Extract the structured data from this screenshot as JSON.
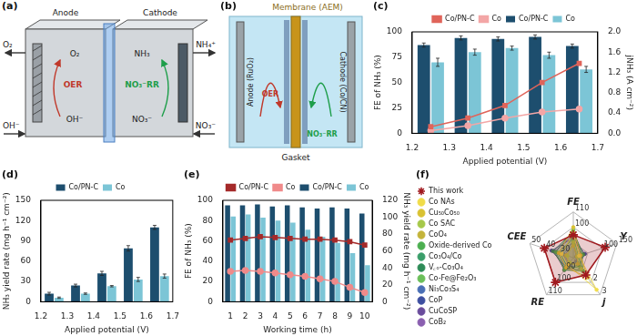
{
  "diagrams": {
    "a": {
      "label": "(a)",
      "anode": "Anode",
      "cathode": "Cathode",
      "anode_in": "OH⁻",
      "anode_out": "O₂",
      "cathode_in": "NO₃⁻",
      "cathode_out": "NH₄⁺",
      "anode_reaction": {
        "name": "OER",
        "reactant": "OH⁻",
        "product": "O₂"
      },
      "cathode_reaction": {
        "name": "NO₃⁻RR",
        "reactant": "NO₃⁻",
        "product": "NH₃"
      }
    },
    "b": {
      "label": "(b)",
      "membrane": "Membrane (AEM)",
      "anode": "Anode (RuO₂)",
      "cathode": "Cathode (Co/CN)",
      "anode_reaction": "OER",
      "cathode_reaction": "NO₃⁻RR",
      "gasket": "Gasket"
    }
  },
  "chart_data": [
    {
      "title": "(c)",
      "type": "bar",
      "x_label": "Applied potential (V)",
      "y_label": "FE of NH₃ (%)",
      "y2_label": "jNH₃ (A cm⁻²)",
      "x": [
        1.25,
        1.35,
        1.45,
        1.55,
        1.65
      ],
      "xlim": [
        1.2,
        1.7
      ],
      "xticks": [
        1.2,
        1.3,
        1.4,
        1.5,
        1.6,
        1.7
      ],
      "ylim": [
        0,
        100
      ],
      "yticks": [
        0,
        25,
        50,
        75,
        100
      ],
      "y2lim": [
        0,
        2
      ],
      "y2ticks": [
        {
          "value": 0,
          "label": "0.0"
        },
        0.4,
        0.8,
        1.2,
        1.6,
        {
          "value": 2,
          "label": "2.0"
        }
      ],
      "grid": false,
      "legend": "top",
      "series": [
        {
          "name": "Co/PN-C",
          "type": "bar",
          "color": "#1d4e6e",
          "values": [
            87,
            94,
            93,
            95,
            86
          ],
          "errors": [
            2,
            2,
            2,
            2,
            2
          ]
        },
        {
          "name": "Co",
          "type": "bar",
          "color": "#7cc5d6",
          "values": [
            70,
            80,
            84,
            77,
            63
          ],
          "errors": [
            4,
            3,
            2,
            3,
            3
          ]
        },
        {
          "name": "Co/PN-C",
          "type": "line",
          "axis": "y2",
          "color": "#e0645a",
          "marker": "square",
          "values": [
            0.13,
            0.3,
            0.55,
            1.0,
            1.38
          ]
        },
        {
          "name": "Co",
          "type": "line",
          "axis": "y2",
          "color": "#f3a6a6",
          "marker": "circle",
          "values": [
            0.05,
            0.15,
            0.3,
            0.42,
            0.48
          ]
        }
      ]
    },
    {
      "title": "(d)",
      "type": "bar",
      "x_label": "Applied potential (V)",
      "y_label": "NH₃ yield rate (mg h⁻¹ cm⁻²)",
      "x": [
        1.25,
        1.35,
        1.45,
        1.55,
        1.65
      ],
      "xlim": [
        1.2,
        1.7
      ],
      "xticks": [
        1.2,
        1.3,
        1.4,
        1.5,
        1.6,
        1.7
      ],
      "ylim": [
        0,
        150
      ],
      "yticks": [
        0,
        30,
        60,
        90,
        120,
        150
      ],
      "grid": false,
      "legend": "top",
      "series": [
        {
          "name": "Co/PN-C",
          "color": "#1d4e6e",
          "values": [
            12,
            24,
            42,
            79,
            110
          ],
          "errors": [
            2,
            2,
            3,
            4,
            3
          ]
        },
        {
          "name": "Co",
          "color": "#7cc5d6",
          "values": [
            6,
            12,
            23,
            33,
            38
          ],
          "errors": [
            1,
            1,
            1,
            3,
            3
          ]
        }
      ]
    },
    {
      "title": "(e)",
      "type": "bar",
      "x_label": "Working time (h)",
      "y_label": "FE of NH₃ (%)",
      "y2_label": "NH₃ yield rate (mg h⁻¹ cm⁻²)",
      "categories": [
        "1",
        "2",
        "3",
        "4",
        "5",
        "6",
        "7",
        "8",
        "9",
        "10"
      ],
      "ylim": [
        0,
        100
      ],
      "yticks": [
        0,
        20,
        40,
        60,
        80,
        100
      ],
      "y2lim": [
        0,
        120
      ],
      "y2ticks": [
        0,
        20,
        40,
        60,
        80,
        100,
        120
      ],
      "grid": false,
      "legend": "top",
      "series": [
        {
          "name": "Co/PN-C",
          "type": "bar",
          "color": "#1d4e6e",
          "values": [
            95,
            95,
            96,
            94,
            95,
            93,
            92,
            93,
            92,
            87
          ]
        },
        {
          "name": "Co",
          "type": "bar",
          "color": "#7cc5d6",
          "values": [
            84,
            86,
            83,
            80,
            78,
            71,
            64,
            58,
            48,
            36
          ]
        },
        {
          "name": "Co/PN-C",
          "type": "line",
          "axis": "y2",
          "color": "#a52a2a",
          "marker": "square",
          "values": [
            73,
            75,
            77,
            76,
            75,
            74,
            74,
            73,
            71,
            67
          ]
        },
        {
          "name": "Co",
          "type": "line",
          "axis": "y2",
          "color": "#f08a8a",
          "marker": "circle",
          "values": [
            36,
            37,
            36,
            34,
            32,
            30,
            27,
            24,
            17,
            11
          ]
        }
      ]
    },
    {
      "title": "(f)",
      "type": "radar",
      "legend": "left",
      "axes": [
        {
          "label": "FE",
          "lim": [
            80,
            110
          ],
          "ticks": [
            100,
            110
          ]
        },
        {
          "label": "Y",
          "lim": [
            0,
            150
          ],
          "ticks": [
            100,
            150
          ]
        },
        {
          "label": "j",
          "lim": [
            0,
            3
          ],
          "ticks": [
            2,
            3
          ]
        },
        {
          "label": "RE",
          "lim": [
            80,
            110
          ],
          "ticks": [
            90,
            100,
            110
          ]
        },
        {
          "label": "CEE",
          "lim": [
            20,
            50
          ],
          "ticks": [
            30,
            40,
            50
          ]
        }
      ],
      "series": [
        {
          "name": "Co NAs",
          "color": "#f0dc4a",
          "marker": "circle",
          "values": [
            96,
            20,
            2.6,
            86,
            28
          ]
        },
        {
          "name": "Cu₅₀Co₅₀",
          "color": "#d9c232",
          "marker": "circle",
          "values": [
            100,
            25,
            1.6,
            88,
            30
          ]
        },
        {
          "name": "Co SAC",
          "color": "#a6c84a",
          "marker": "circle",
          "values": [
            90,
            15,
            0.9,
            84,
            24
          ]
        },
        {
          "name": "CoO₄",
          "color": "#c4b43a",
          "marker": "circle",
          "values": [
            88,
            12,
            0.5,
            85,
            25
          ]
        },
        {
          "name": "Oxide-derived Co",
          "color": "#4caf50",
          "marker": "circle",
          "values": [
            98,
            30,
            1.1,
            90,
            32
          ]
        },
        {
          "name": "Co₃O₄/Co",
          "color": "#3a9e6a",
          "marker": "circle",
          "values": [
            94,
            18,
            0.8,
            87,
            29
          ]
        },
        {
          "name": "V꜀ₒ-Co₃O₄",
          "color": "#2e8b57",
          "marker": "circle",
          "values": [
            97,
            35,
            0.7,
            89,
            34
          ]
        },
        {
          "name": "Co-Fe@Fe₂O₃",
          "color": "#6bbf59",
          "marker": "circle",
          "values": [
            92,
            22,
            1.0,
            88,
            31
          ]
        },
        {
          "name": "Ni₃Co₃S₄",
          "color": "#4a6fb5",
          "marker": "circle",
          "values": [
            91,
            10,
            0.4,
            86,
            27
          ]
        },
        {
          "name": "CoP",
          "color": "#3d4fa0",
          "marker": "circle",
          "values": [
            93,
            40,
            0.6,
            88,
            35
          ]
        },
        {
          "name": "CuCoSP",
          "color": "#6a4c9c",
          "marker": "circle",
          "values": [
            95,
            28,
            0.9,
            90,
            33
          ]
        },
        {
          "name": "CoB₂",
          "color": "#8a5fb0",
          "marker": "circle",
          "values": [
            89,
            14,
            0.3,
            85,
            26
          ]
        },
        {
          "name": "This work",
          "color": "#a0191e",
          "marker": "star",
          "values": [
            95,
            110,
            1.4,
            100,
            40
          ]
        }
      ]
    }
  ]
}
